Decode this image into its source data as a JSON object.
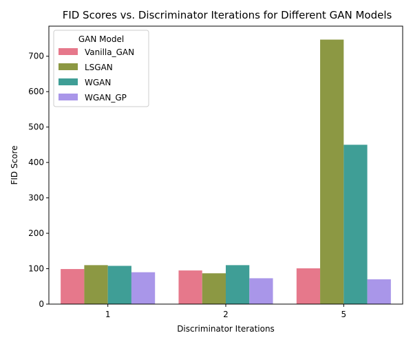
{
  "chart_data": {
    "type": "bar",
    "title": "FID Scores vs. Discriminator Iterations for Different GAN Models",
    "xlabel": "Discriminator Iterations",
    "ylabel": "FID Score",
    "categories": [
      "1",
      "2",
      "5"
    ],
    "ylim": [
      0,
      785
    ],
    "yticks": [
      0,
      100,
      200,
      300,
      400,
      500,
      600,
      700
    ],
    "grid": false,
    "legend": {
      "title": "GAN Model",
      "placement": "top-left"
    },
    "series": [
      {
        "name": "Vanilla_GAN",
        "color": "#e6788b",
        "values": [
          99,
          95,
          101
        ]
      },
      {
        "name": "LSGAN",
        "color": "#8c9843",
        "values": [
          110,
          87,
          747
        ]
      },
      {
        "name": "WGAN",
        "color": "#3f9e96",
        "values": [
          108,
          110,
          450
        ]
      },
      {
        "name": "WGAN_GP",
        "color": "#a996e9",
        "values": [
          90,
          73,
          70
        ]
      }
    ]
  }
}
